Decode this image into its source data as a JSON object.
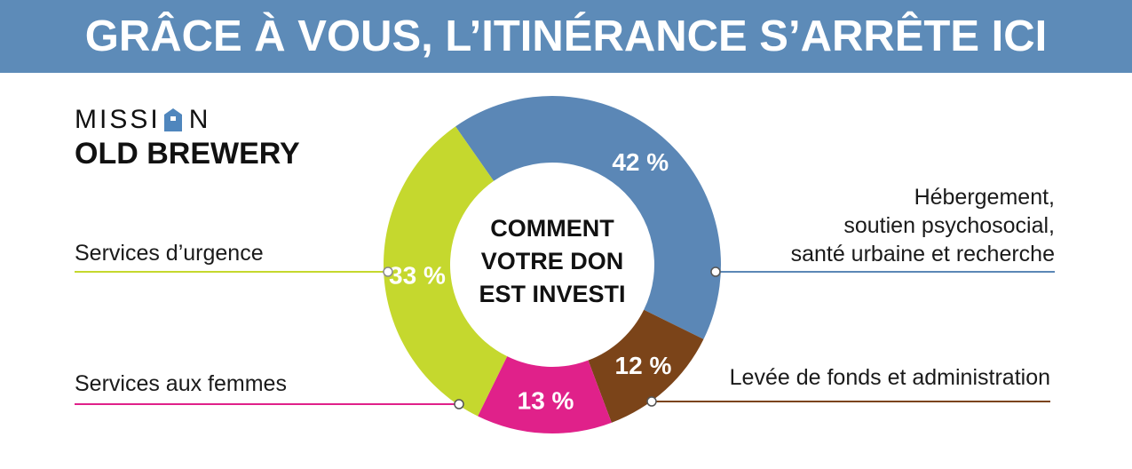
{
  "banner": {
    "title": "GRÂCE À VOUS, L’ITINÉRANCE S’ARRÊTE ICI"
  },
  "logo": {
    "line1_a": "MISSI",
    "line1_b": "N",
    "line2": "OLD BREWERY"
  },
  "center_text": [
    "COMMENT",
    "VOTRE DON",
    "EST INVESTI"
  ],
  "colors": {
    "banner": "#5d8bb8",
    "blue": "#5b87b6",
    "brown": "#7b4419",
    "magenta": "#e0218a",
    "green": "#c5d82e"
  },
  "chart_data": {
    "type": "pie",
    "donut": true,
    "title": "",
    "slices": [
      {
        "label_lines": [
          "Hébergement,",
          "soutien psychosocial,",
          "santé urbaine et recherche"
        ],
        "value": 42,
        "value_label": "42 %",
        "color": "#5b87b6"
      },
      {
        "label_lines": [
          "Levée de fonds et administration"
        ],
        "value": 12,
        "value_label": "12 %",
        "color": "#7b4419"
      },
      {
        "label_lines": [
          "Services aux femmes"
        ],
        "value": 13,
        "value_label": "13 %",
        "color": "#e0218a"
      },
      {
        "label_lines": [
          "Services d’urgence"
        ],
        "value": 33,
        "value_label": "33 %",
        "color": "#c5d82e"
      }
    ]
  }
}
